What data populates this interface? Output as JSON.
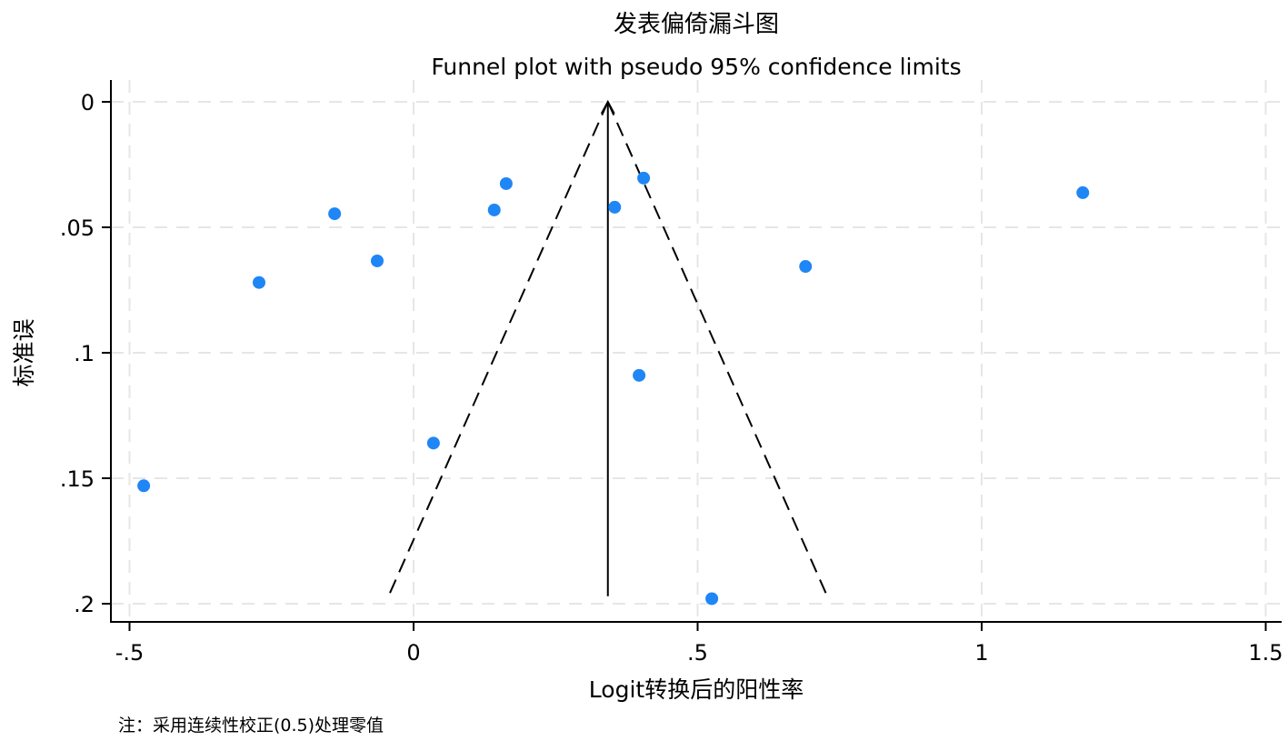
{
  "chart_data": {
    "type": "scatter",
    "title": "发表偏倚漏斗图",
    "subtitle": "Funnel plot with pseudo 95% confidence limits",
    "xlabel": "Logit转换后的阳性率",
    "ylabel": "标准误",
    "note": "注：采用连续性校正(0.5)处理零值",
    "xlim": [
      -0.53,
      1.53
    ],
    "ylim": [
      0,
      0.207
    ],
    "y_reversed": true,
    "grid": true,
    "x_ticks": [
      -0.5,
      0,
      0.5,
      1,
      1.5
    ],
    "x_tick_labels": [
      "-.5",
      "0",
      ".5",
      "1",
      "1.5"
    ],
    "y_ticks": [
      0,
      0.05,
      0.1,
      0.15,
      0.2
    ],
    "y_tick_labels": [
      "0",
      ".05",
      ".1",
      ".15",
      ".2"
    ],
    "point_color": "#1f86f5",
    "pooled_estimate": 0.342,
    "funnel_max_se": 0.197,
    "funnel_z": 1.96,
    "points": [
      {
        "x": -0.475,
        "y": 0.153
      },
      {
        "x": -0.272,
        "y": 0.072
      },
      {
        "x": -0.139,
        "y": 0.0446
      },
      {
        "x": -0.064,
        "y": 0.0634
      },
      {
        "x": 0.035,
        "y": 0.136
      },
      {
        "x": 0.142,
        "y": 0.0431
      },
      {
        "x": 0.163,
        "y": 0.0326
      },
      {
        "x": 0.354,
        "y": 0.042
      },
      {
        "x": 0.405,
        "y": 0.0304
      },
      {
        "x": 0.397,
        "y": 0.109
      },
      {
        "x": 0.525,
        "y": 0.198
      },
      {
        "x": 0.69,
        "y": 0.0656
      },
      {
        "x": 1.178,
        "y": 0.0362
      }
    ]
  }
}
